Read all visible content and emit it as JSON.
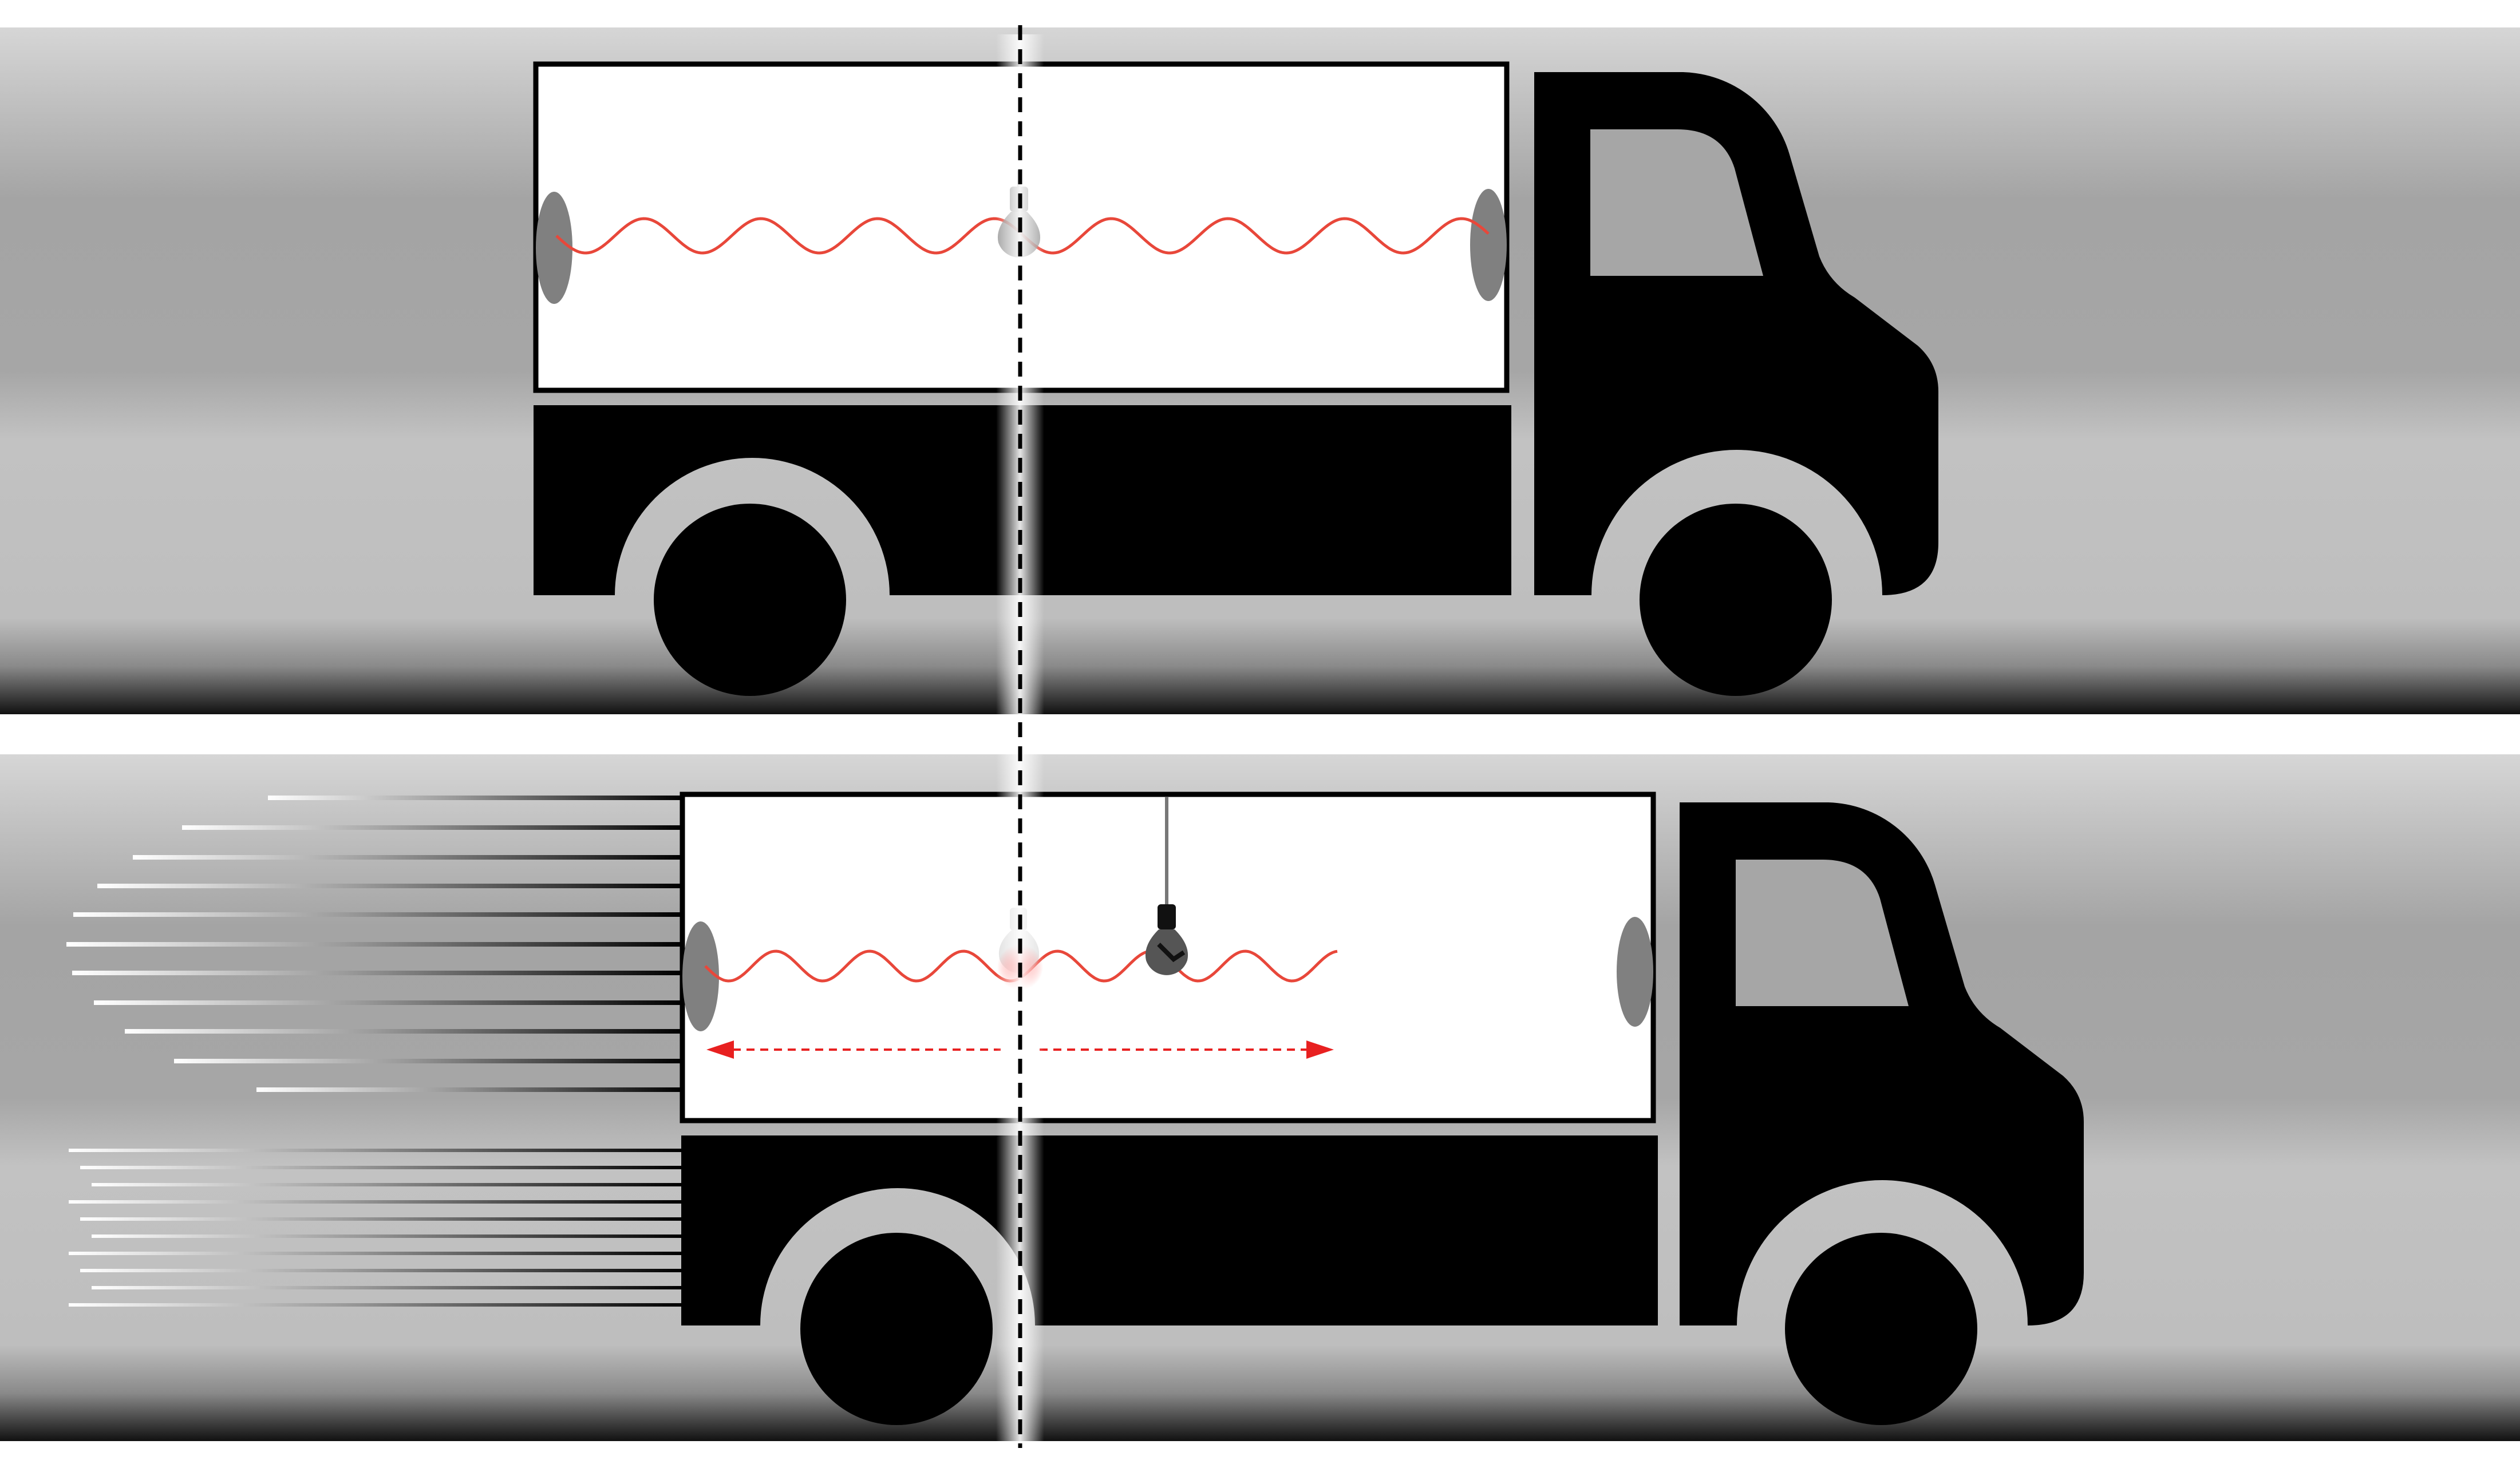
{
  "diagram": {
    "panels": [
      {
        "id": "stationary",
        "truck_moving": false
      },
      {
        "id": "moving",
        "truck_moving": true
      }
    ]
  },
  "colors": {
    "background": "#ffffff",
    "band_light": "#d6d6d6",
    "band_mid": "#a4a4a4",
    "band_low": "#c0c0c0",
    "truck": "#000000",
    "cargo_interior": "#ffffff",
    "window": "#a6a6a6",
    "detector": "#808080",
    "bulb": "#7a7a7a",
    "light_wave": "#e8473a",
    "motion_arrow": "#e82020",
    "reference_line": "#000000"
  },
  "icons": [
    "truck-icon",
    "lightbulb-icon",
    "light-detector-icon",
    "wheel-icon",
    "speed-lines-icon"
  ]
}
